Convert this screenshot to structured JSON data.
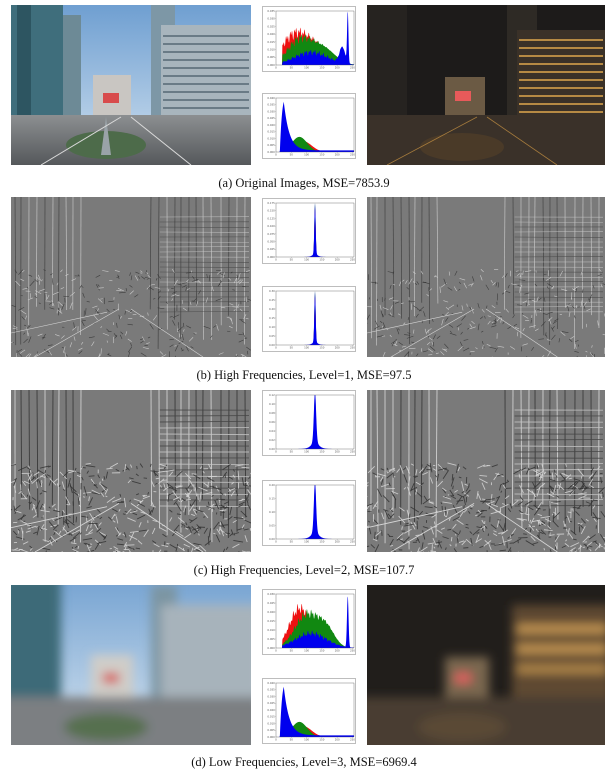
{
  "figure": {
    "rows": [
      {
        "id": "original",
        "caption": "(a) Original Images, MSE=7853.9",
        "kind": "photo",
        "left_scene": "day",
        "right_scene": "night",
        "hist_top": {
          "type": "rgb",
          "dominant": "red-green-blue",
          "peak_right": true,
          "y_ticks": [
            "0.035",
            "0.030",
            "0.025",
            "0.020",
            "0.015",
            "0.010",
            "0.005",
            "0.000"
          ]
        },
        "hist_bottom": {
          "type": "dark",
          "dominant": "blue",
          "y_ticks": [
            "0.040",
            "0.035",
            "0.030",
            "0.025",
            "0.020",
            "0.015",
            "0.010",
            "0.005",
            "0.000"
          ]
        }
      },
      {
        "id": "high1",
        "caption": "(b) High Frequencies, Level=1, MSE=97.5",
        "kind": "edges",
        "hist_top": {
          "type": "spike",
          "y_ticks": [
            "0.175",
            "0.150",
            "0.125",
            "0.100",
            "0.075",
            "0.050",
            "0.025",
            "0.000"
          ]
        },
        "hist_bottom": {
          "type": "spike",
          "y_ticks": [
            "0.30",
            "0.25",
            "0.20",
            "0.15",
            "0.10",
            "0.05",
            "0.00"
          ]
        }
      },
      {
        "id": "high2",
        "caption": "(c) High Frequencies, Level=2, MSE=107.7",
        "kind": "edges-strong",
        "hist_top": {
          "type": "spike-wide",
          "y_ticks": [
            "0.12",
            "0.10",
            "0.08",
            "0.06",
            "0.04",
            "0.02",
            "0.00"
          ]
        },
        "hist_bottom": {
          "type": "spike-wide",
          "y_ticks": [
            "0.20",
            "0.15",
            "0.10",
            "0.05",
            "0.00"
          ]
        }
      },
      {
        "id": "low3",
        "caption": "(d) Low Frequencies, Level=3, MSE=6969.4",
        "kind": "blur",
        "left_scene": "day",
        "right_scene": "night",
        "hist_top": {
          "type": "rgb-blur",
          "peak_right": true,
          "y_ticks": [
            "0.030",
            "0.025",
            "0.020",
            "0.015",
            "0.010",
            "0.005",
            "0.000"
          ]
        },
        "hist_bottom": {
          "type": "dark",
          "y_ticks": [
            "0.040",
            "0.035",
            "0.030",
            "0.025",
            "0.020",
            "0.015",
            "0.010",
            "0.005",
            "0.000"
          ]
        }
      }
    ],
    "hist_x_ticks": [
      "0",
      "50",
      "100",
      "150",
      "200",
      "250"
    ],
    "colors": {
      "red": "#ee1111",
      "green": "#118811",
      "blue": "#0000ee",
      "edge_gray": "#7a7a7a"
    }
  }
}
